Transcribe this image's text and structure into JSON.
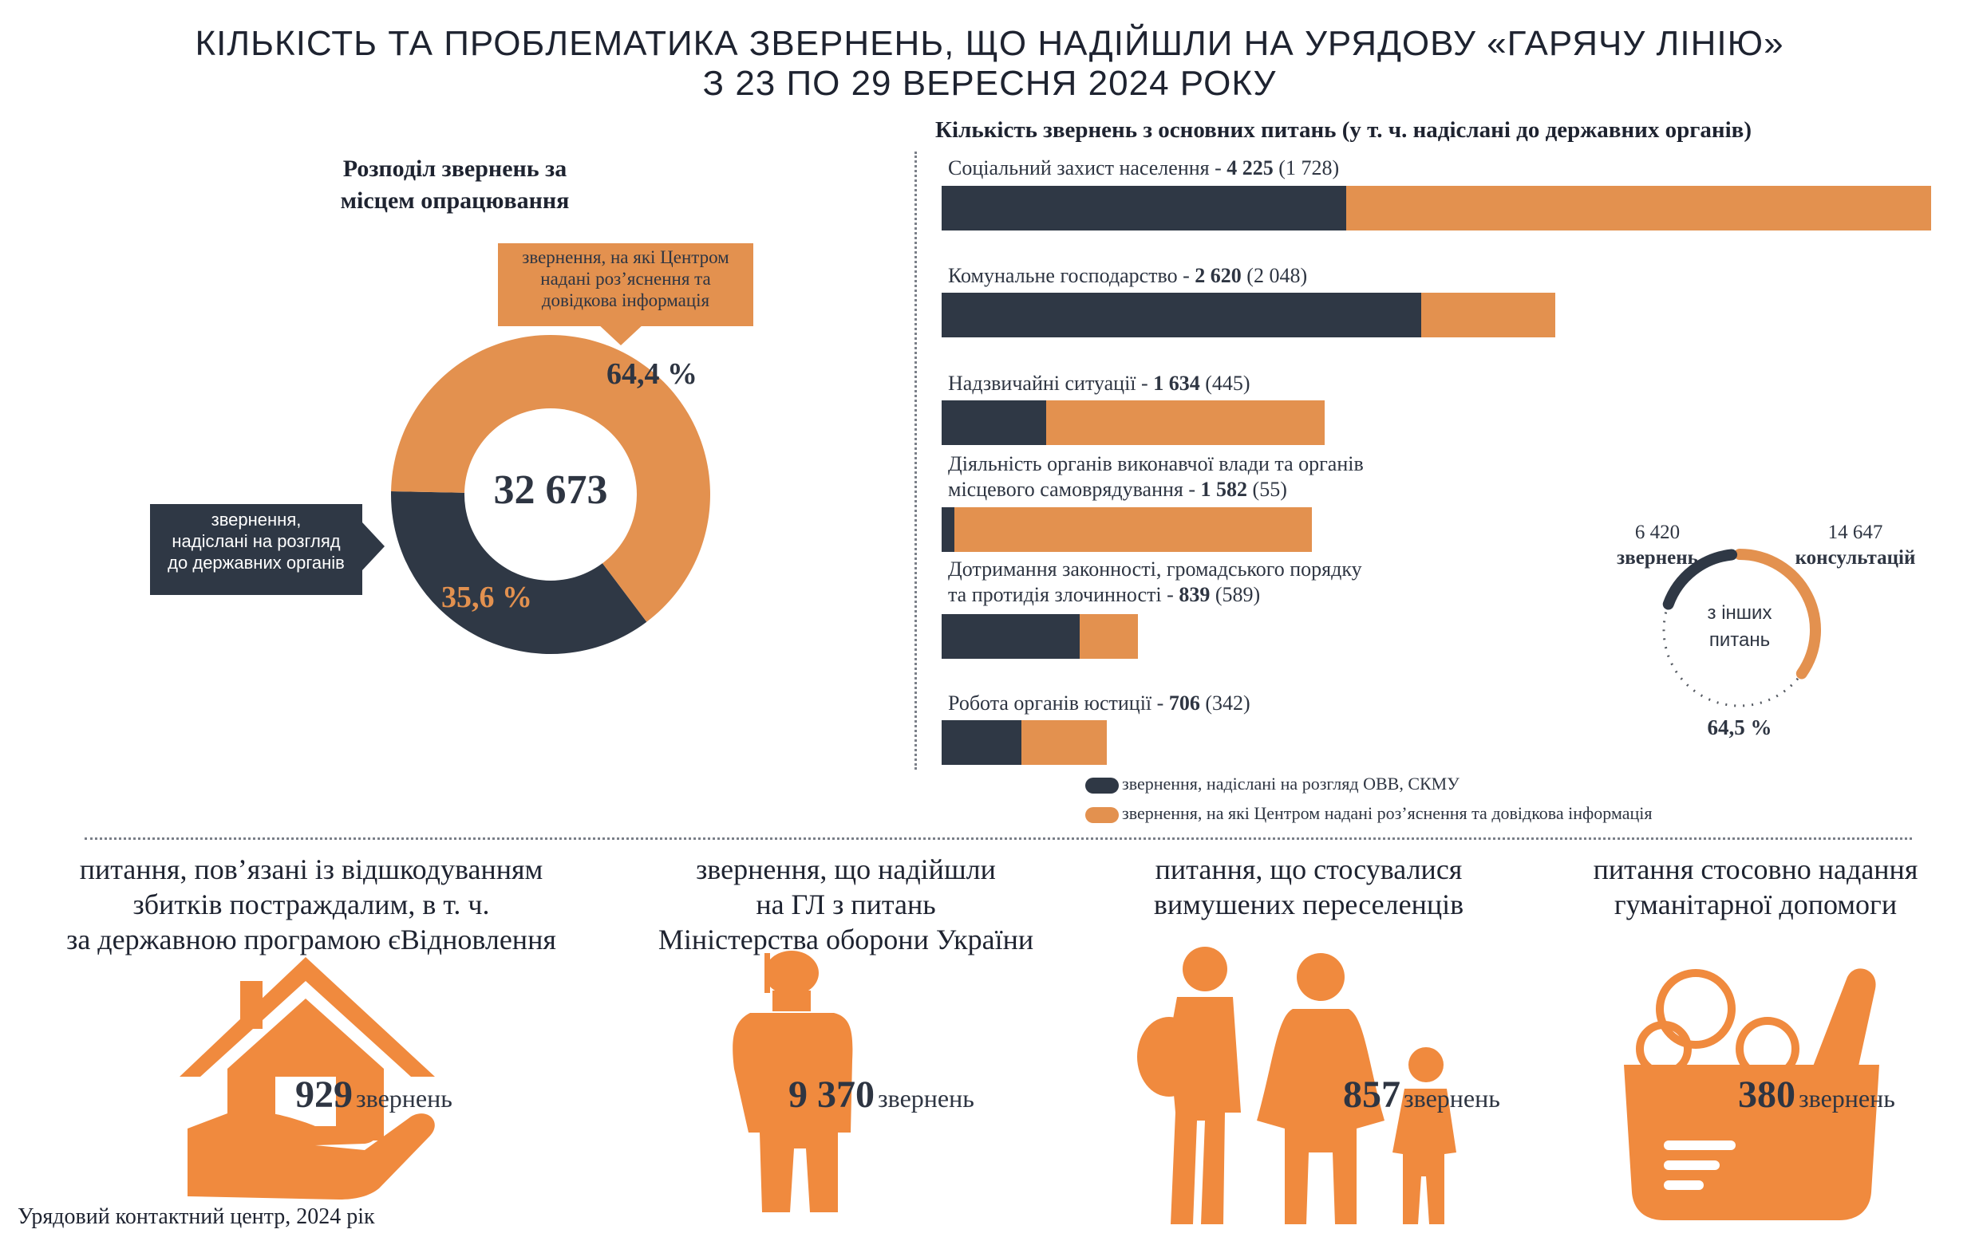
{
  "header": {
    "title_line1": "КІЛЬКІСТЬ ТА ПРОБЛЕМАТИКА ЗВЕРНЕНЬ, ЩО НАДІЙШЛИ НА УРЯДОВУ «ГАРЯЧУ ЛІНІЮ»",
    "title_line2": "З 23 ПО 29 ВЕРЕСНЯ 2024 РОКУ"
  },
  "donut": {
    "heading_line1": "Розподіл звернень за",
    "heading_line2": "місцем опрацювання",
    "total": "32 673",
    "orange_pct_label": "64,4 %",
    "dark_pct_label": "35,6 %",
    "orange_callout": [
      "звернення, на які Центром",
      "надані роз’яснення та",
      "довідкова інформація"
    ],
    "dark_callout": [
      "звернення,",
      "надіслані на розгляд",
      "до державних органів"
    ]
  },
  "bars": {
    "heading": "Кількість звернень з основних питань (у т. ч. надіслані до державних органів)",
    "legend_dark": "звернення, надіслані на розгляд ОВВ, СКМУ",
    "legend_orange": "звернення, на які Центром надані роз’яснення та довідкова інформація"
  },
  "other": {
    "left_value": "6 420",
    "left_label": "звернень",
    "right_value": "14 647",
    "right_label": "консультацій",
    "center_line1": "з інших",
    "center_line2": "питань",
    "pct": "64,5 %"
  },
  "sections": [
    {
      "title": [
        "питання, пов’язані із відшкодуванням",
        "збитків постраждалим, в т. ч.",
        "за державною програмою єВідновлення"
      ],
      "count": "929",
      "unit": "звернень",
      "icon": "house-hand-icon"
    },
    {
      "title": [
        "звернення, що надійшли",
        "на ГЛ з питань",
        "Міністерства оборони України"
      ],
      "count": "9 370",
      "unit": "звернень",
      "icon": "soldier-icon"
    },
    {
      "title": [
        "питання, що стосувалися",
        "вимушених переселенців"
      ],
      "count": "857",
      "unit": "звернень",
      "icon": "family-icon"
    },
    {
      "title": [
        "питання стосовно надання",
        "гуманітарної допомоги"
      ],
      "count": "380",
      "unit": "звернень",
      "icon": "food-basket-icon"
    }
  ],
  "footer": "Урядовий контактний центр, 2024 рік",
  "colors": {
    "dark": "#2f3845",
    "orange": "#e3914f"
  },
  "chart_data": [
    {
      "type": "pie",
      "title": "Розподіл звернень за місцем опрацювання",
      "total": 32673,
      "slices": [
        {
          "name": "звернення, на які Центром надані роз’яснення та довідкова інформація",
          "value": 64.4
        },
        {
          "name": "звернення, надіслані на розгляд до державних органів",
          "value": 35.6
        }
      ]
    },
    {
      "type": "bar",
      "orientation": "horizontal",
      "stacked": true,
      "title": "Кількість звернень з основних питань (у т. ч. надіслані до державних органів)",
      "categories": [
        {
          "label": "Соціальний захист населення",
          "total": 4225,
          "sent": 1728
        },
        {
          "label": "Комунальне господарство",
          "total": 2620,
          "sent": 2048
        },
        {
          "label": "Надзвичайні ситуації",
          "total": 1634,
          "sent": 445
        },
        {
          "label": "Діяльність органів виконавчої влади та органів місцевого самоврядування",
          "total": 1582,
          "sent": 55
        },
        {
          "label": "Дотримання законності, громадського порядку та протидія злочинності",
          "total": 839,
          "sent": 589
        },
        {
          "label": "Робота органів юстиції",
          "total": 706,
          "sent": 342
        }
      ],
      "series": [
        {
          "name": "звернення, надіслані на розгляд ОВВ, СКМУ",
          "values": [
            1728,
            2048,
            445,
            55,
            589,
            342
          ]
        },
        {
          "name": "звернення, на які Центром надані роз’яснення та довідкова інформація",
          "values": [
            2497,
            572,
            1189,
            1527,
            250,
            364
          ]
        }
      ]
    },
    {
      "type": "pie",
      "title": "з інших питань",
      "slices": [
        {
          "name": "звернень",
          "value": 6420
        },
        {
          "name": "консультацій",
          "value": 14647
        }
      ]
    }
  ]
}
